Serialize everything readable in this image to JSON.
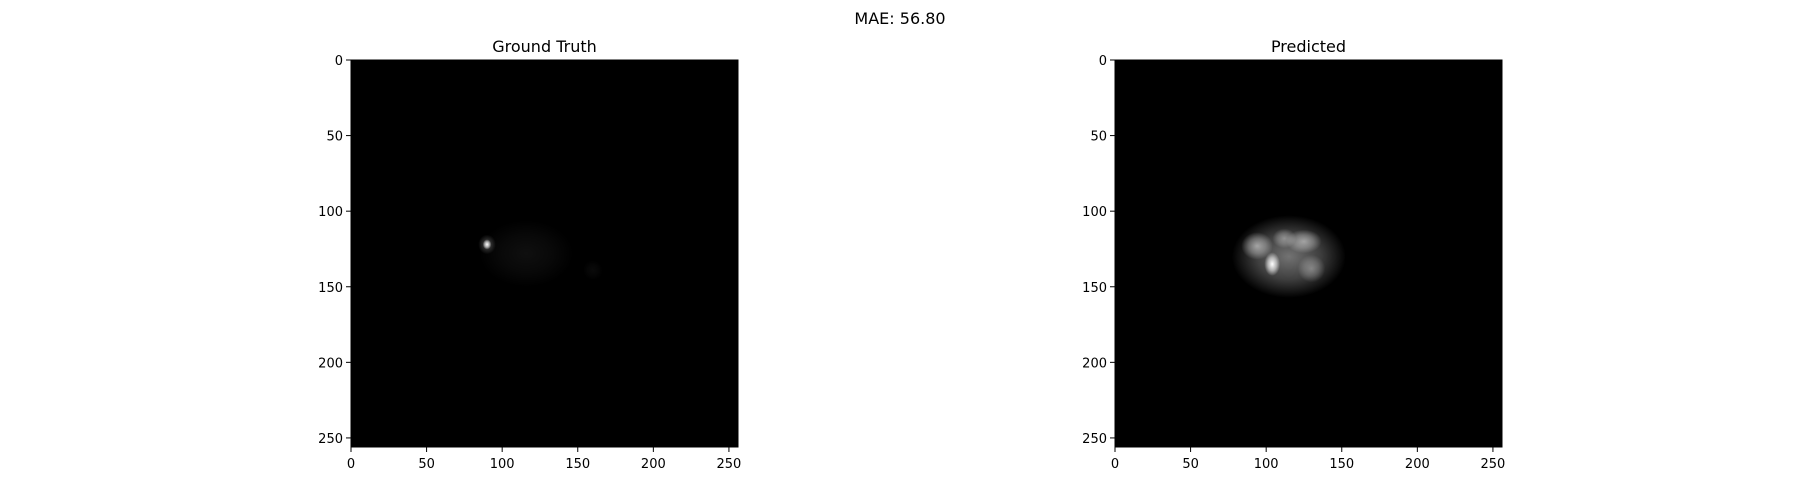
{
  "figure": {
    "suptitle": "MAE: 56.80"
  },
  "chart_data": [
    {
      "type": "heatmap",
      "title": "Ground Truth",
      "colormap": "gray",
      "background": "#000000",
      "xlim": [
        0,
        256
      ],
      "ylim": [
        256,
        0
      ],
      "xticks": [
        0,
        50,
        100,
        150,
        200,
        250
      ],
      "yticks": [
        0,
        50,
        100,
        150,
        200,
        250
      ],
      "blobs": [
        {
          "x": 90,
          "y": 122,
          "rx": 2.2,
          "ry": 2.6,
          "intensity": 1.0
        },
        {
          "x": 90,
          "y": 122,
          "rx": 4.5,
          "ry": 5,
          "intensity": 0.25
        },
        {
          "x": 116,
          "y": 128,
          "rx": 24,
          "ry": 17,
          "intensity": 0.06
        },
        {
          "x": 160,
          "y": 139,
          "rx": 5,
          "ry": 5,
          "intensity": 0.04
        }
      ]
    },
    {
      "type": "heatmap",
      "title": "Predicted",
      "colormap": "gray",
      "background": "#000000",
      "xlim": [
        0,
        256
      ],
      "ylim": [
        256,
        0
      ],
      "xticks": [
        0,
        50,
        100,
        150,
        200,
        250
      ],
      "yticks": [
        0,
        50,
        100,
        150,
        200,
        250
      ],
      "blobs": [
        {
          "x": 115,
          "y": 130,
          "rx": 29,
          "ry": 21,
          "intensity": 0.45
        },
        {
          "x": 94,
          "y": 123,
          "rx": 8,
          "ry": 7,
          "intensity": 0.55
        },
        {
          "x": 104,
          "y": 135,
          "rx": 4,
          "ry": 6,
          "intensity": 1.0
        },
        {
          "x": 125,
          "y": 120,
          "rx": 9,
          "ry": 6,
          "intensity": 0.5
        },
        {
          "x": 130,
          "y": 138,
          "rx": 7,
          "ry": 7,
          "intensity": 0.35
        },
        {
          "x": 112,
          "y": 118,
          "rx": 6,
          "ry": 5,
          "intensity": 0.4
        }
      ]
    }
  ]
}
